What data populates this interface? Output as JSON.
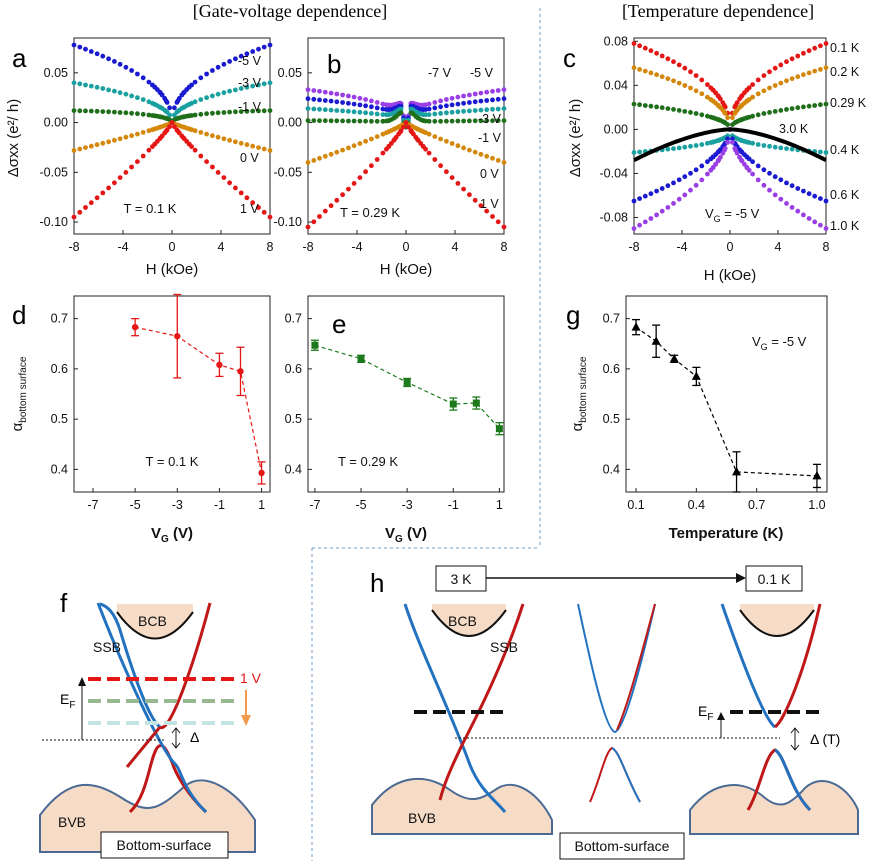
{
  "headers": {
    "gate": "[Gate-voltage dependence]",
    "temp": "[Temperature dependence]"
  },
  "colors": {
    "red": "#e51616",
    "orange": "#d4880a",
    "dgreen": "#1f6e1a",
    "teal": "#1aa0a0",
    "blue": "#1a1ad0",
    "purple": "#9a3ee6",
    "black": "#000000",
    "sand": "#f6dcc6",
    "bandRed": "#c01818",
    "bandBlue": "#2272c0",
    "greenData": "#1c7a1c"
  },
  "chart_data": [
    {
      "id": "a",
      "type": "scatter",
      "panel_label": "a",
      "title": "",
      "xlabel": "H (kOe)",
      "ylabel": "Δσxx (e²/ h)",
      "xlim": [
        -8,
        8
      ],
      "ylim": [
        -0.112,
        0.085
      ],
      "xticks": [
        -8,
        -4,
        0,
        4,
        8
      ],
      "yticks": [
        -0.1,
        -0.05,
        0.0,
        0.05
      ],
      "ytick_labels": [
        "-0.10",
        "-0.05",
        "0.00",
        "0.05"
      ],
      "annotation": "T = 0.1 K",
      "series": [
        {
          "name": "-5 V",
          "color": "blue",
          "amp": 0.078,
          "shape": "sqrt"
        },
        {
          "name": "-3 V",
          "color": "teal",
          "amp": 0.04,
          "shape": "sqrt"
        },
        {
          "name": "-1 V",
          "color": "dgreen",
          "amp": 0.012,
          "shape": "dip"
        },
        {
          "name": "0 V",
          "color": "orange",
          "amp": -0.028,
          "shape": "lin"
        },
        {
          "name": "1 V",
          "color": "red",
          "amp": -0.095,
          "shape": "lin"
        }
      ]
    },
    {
      "id": "b",
      "type": "scatter",
      "panel_label": "b",
      "title": "",
      "xlabel": "H (kOe)",
      "ylabel": "",
      "xlim": [
        -8,
        8
      ],
      "ylim": [
        -0.112,
        0.085
      ],
      "xticks": [
        -8,
        -4,
        0,
        4,
        8
      ],
      "yticks": [
        -0.1,
        -0.05,
        0.0,
        0.05
      ],
      "ytick_labels": [
        "-0.10",
        "-0.05",
        "0.00",
        "0.05"
      ],
      "annotation": "T = 0.29 K",
      "series": [
        {
          "name": "-7 V",
          "color": "purple",
          "amp": 0.033,
          "shape": "wdip"
        },
        {
          "name": "-5 V",
          "color": "blue",
          "amp": 0.024,
          "shape": "wdip"
        },
        {
          "name": "-3 V",
          "color": "teal",
          "amp": 0.014,
          "shape": "wdip"
        },
        {
          "name": "-1 V",
          "color": "dgreen",
          "amp": 0.002,
          "shape": "wdip"
        },
        {
          "name": "0 V",
          "color": "orange",
          "amp": -0.04,
          "shape": "lin"
        },
        {
          "name": "1 V",
          "color": "red",
          "amp": -0.105,
          "shape": "lin"
        }
      ]
    },
    {
      "id": "c",
      "type": "scatter",
      "panel_label": "c",
      "title": "",
      "xlabel": "H (kOe)",
      "ylabel": "Δσxx (e²/ h)",
      "xlim": [
        -8,
        8
      ],
      "ylim": [
        -0.095,
        0.083
      ],
      "xticks": [
        -8,
        -4,
        0,
        4,
        8
      ],
      "yticks": [
        -0.08,
        -0.04,
        0.0,
        0.04,
        0.08
      ],
      "ytick_labels": [
        "-0.08",
        "-0.04",
        "0.00",
        "0.04",
        "0.08"
      ],
      "annotation": "V",
      "annotation_sub": "G",
      "annotation_rest": " = -5 V",
      "inline_label": "3.0 K",
      "series": [
        {
          "name": "0.1 K",
          "color": "red",
          "amp": 0.078,
          "shape": "sqrt"
        },
        {
          "name": "0.2 K",
          "color": "orange",
          "amp": 0.056,
          "shape": "sqrt"
        },
        {
          "name": "0.29 K",
          "color": "dgreen",
          "amp": 0.023,
          "shape": "sqrt"
        },
        {
          "name": "0.4 K",
          "color": "teal",
          "amp": -0.021,
          "shape": "dipneg"
        },
        {
          "name": "0.6 K",
          "color": "blue",
          "amp": -0.065,
          "shape": "neg"
        },
        {
          "name": "1.0 K",
          "color": "purple",
          "amp": -0.09,
          "shape": "neg"
        },
        {
          "name": "3.0 K",
          "color": "black",
          "amp": -0.028,
          "shape": "quad"
        }
      ]
    },
    {
      "id": "d",
      "type": "line",
      "panel_label": "d",
      "xlabel": "V",
      "xlabel_sub": "G",
      "xlabel_rest": " (V)",
      "ylabel": "α",
      "ylabel_sub": "bottom surface",
      "xlim": [
        -7.9,
        1.4
      ],
      "ylim": [
        0.355,
        0.745
      ],
      "xticks": [
        -7,
        -5,
        -3,
        -1,
        1
      ],
      "yticks": [
        0.4,
        0.5,
        0.6,
        0.7
      ],
      "annotation": "T = 0.1 K",
      "color": "red",
      "x": [
        -5,
        -3,
        -1,
        0,
        1
      ],
      "y": [
        0.683,
        0.665,
        0.608,
        0.595,
        0.393
      ],
      "err": [
        0.017,
        0.083,
        0.023,
        0.048,
        0.022
      ]
    },
    {
      "id": "e",
      "type": "line",
      "panel_label": "e",
      "xlabel": "V",
      "xlabel_sub": "G",
      "xlabel_rest": " (V)",
      "ylabel": "",
      "ylabel_sub": "",
      "xlim": [
        -7.3,
        1.2
      ],
      "ylim": [
        0.355,
        0.745
      ],
      "xticks": [
        -7,
        -5,
        -3,
        -1,
        1
      ],
      "yticks": [
        0.4,
        0.5,
        0.6,
        0.7
      ],
      "annotation": "T = 0.29 K",
      "color": "greenData",
      "x": [
        -7,
        -5,
        -3,
        -1,
        0,
        1
      ],
      "y": [
        0.647,
        0.62,
        0.573,
        0.53,
        0.532,
        0.481
      ],
      "err": [
        0.01,
        0.007,
        0.008,
        0.012,
        0.012,
        0.012
      ]
    },
    {
      "id": "g",
      "type": "line",
      "panel_label": "g",
      "xlabel": "Temperature (K)",
      "xlabel_sub": "",
      "xlabel_rest": "",
      "ylabel": "α",
      "ylabel_sub": "bottom surface",
      "xlim": [
        0.05,
        1.05
      ],
      "ylim": [
        0.355,
        0.745
      ],
      "xticks": [
        0.1,
        0.4,
        0.7,
        1.0
      ],
      "xtick_labels": [
        "0.1",
        "0.4",
        "0.7",
        "1.0"
      ],
      "yticks": [
        0.4,
        0.5,
        0.6,
        0.7
      ],
      "annotation": "V",
      "annotation_sub": "G",
      "annotation_rest": " = -5 V",
      "color": "black",
      "x": [
        0.1,
        0.2,
        0.29,
        0.4,
        0.6,
        1.0
      ],
      "y": [
        0.683,
        0.655,
        0.62,
        0.585,
        0.395,
        0.387
      ],
      "err": [
        0.015,
        0.032,
        0.007,
        0.018,
        0.04,
        0.023
      ]
    }
  ],
  "diagram_f": {
    "label": "f",
    "bcb": "BCB",
    "ssb": "SSB",
    "bvb": "BVB",
    "ef": "E",
    "ef_sub": "F",
    "level_label": "1 V",
    "delta": "Δ",
    "box": "Bottom-surface"
  },
  "diagram_h": {
    "label": "h",
    "bcb": "BCB",
    "ssb": "SSB",
    "bvb": "BVB",
    "ef": "E",
    "ef_sub": "F",
    "delta": "Δ (T)",
    "left_box": "3 K",
    "right_box": "0.1 K",
    "box": "Bottom-surface"
  }
}
